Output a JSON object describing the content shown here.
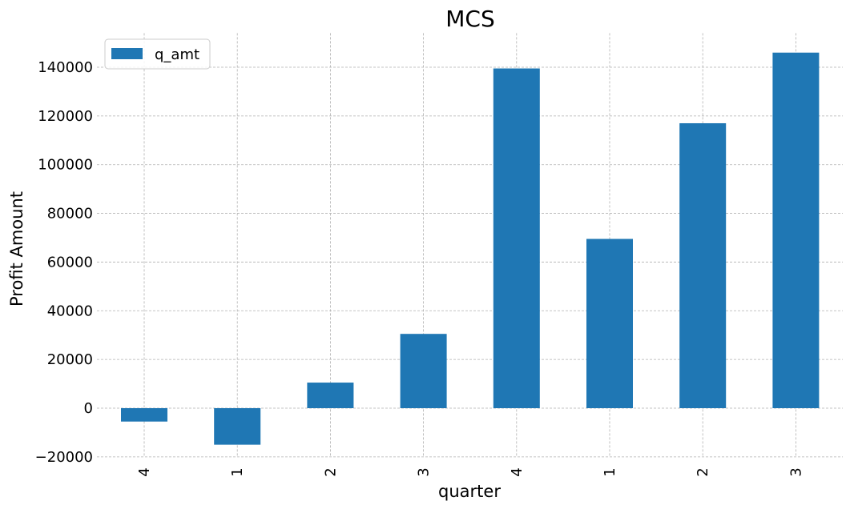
{
  "chart_data": {
    "type": "bar",
    "title": "MCS",
    "xlabel": "quarter",
    "ylabel": "Profit Amount",
    "categories": [
      "4",
      "1",
      "2",
      "3",
      "4",
      "1",
      "2",
      "3"
    ],
    "series": [
      {
        "name": "q_amt",
        "color": "#1f77b4",
        "values": [
          -5500,
          -15000,
          10500,
          30500,
          139500,
          69500,
          117000,
          146000
        ]
      }
    ],
    "ylim": [
      -20000,
      154000
    ],
    "yticks": [
      -20000,
      0,
      20000,
      40000,
      60000,
      80000,
      100000,
      120000,
      140000
    ],
    "ytick_labels": [
      "−20000",
      "0",
      "20000",
      "40000",
      "60000",
      "80000",
      "100000",
      "120000",
      "140000"
    ],
    "grid": true,
    "legend": "top-left",
    "xtick_rotation": "vertical"
  }
}
